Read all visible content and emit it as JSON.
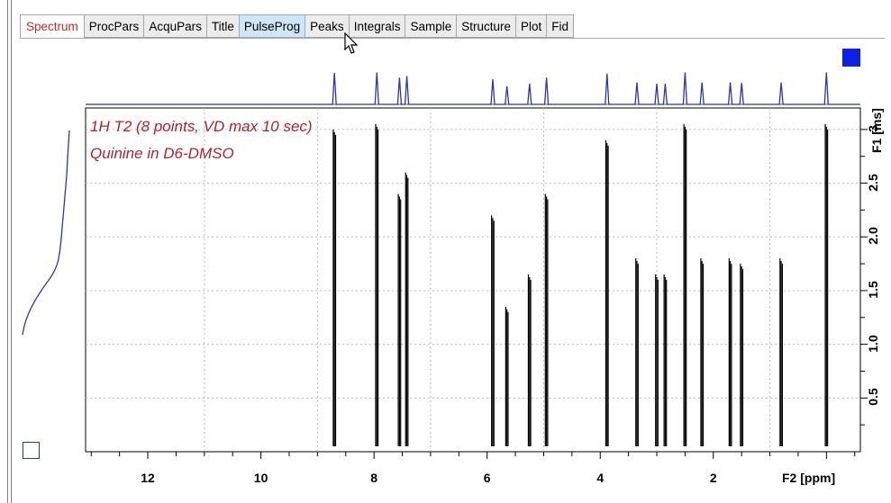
{
  "tabs": [
    {
      "label": "Spectrum",
      "state": "active"
    },
    {
      "label": "ProcPars",
      "state": "normal"
    },
    {
      "label": "AcquPars",
      "state": "normal"
    },
    {
      "label": "Title",
      "state": "normal"
    },
    {
      "label": "PulseProg",
      "state": "hover"
    },
    {
      "label": "Peaks",
      "state": "normal"
    },
    {
      "label": "Integrals",
      "state": "normal"
    },
    {
      "label": "Sample",
      "state": "normal"
    },
    {
      "label": "Structure",
      "state": "normal"
    },
    {
      "label": "Plot",
      "state": "normal"
    },
    {
      "label": "Fid",
      "state": "normal"
    }
  ],
  "spectrum_title": {
    "line1": "1H T2  (8 points, VD max 10 sec)",
    "line2": "Quinine in D6-DMSO"
  },
  "colors": {
    "title_red": "#b0232b",
    "active_tab_red": "#c22a2a",
    "projection_blue": "#2a35b5",
    "accent_blue": "#0b22e6",
    "grid": "#b8b8b8"
  },
  "icons": [
    "mouse-pointer-icon",
    "blue-square-icon",
    "hollow-square-icon"
  ],
  "chart_data": {
    "type": "line",
    "description_of_axes": "2D pseudo-spectrum",
    "x_axis": {
      "label": "F2 [ppm]",
      "ticks": [
        "12",
        "10",
        "8",
        "6",
        "4",
        "2"
      ],
      "range": [
        13.1,
        -0.6
      ],
      "reversed": true
    },
    "y_axis": {
      "label": "F1 [ms]",
      "ticks": [
        "0.5",
        "1.0",
        "1.5",
        "2.0",
        "2.5",
        "3"
      ],
      "range": [
        0,
        3.2
      ]
    },
    "peaks": [
      {
        "ppm": 8.7,
        "max_ms": 3.0
      },
      {
        "ppm": 7.95,
        "max_ms": 3.05
      },
      {
        "ppm": 7.55,
        "max_ms": 2.4
      },
      {
        "ppm": 7.42,
        "max_ms": 2.6
      },
      {
        "ppm": 5.9,
        "max_ms": 2.2
      },
      {
        "ppm": 5.65,
        "max_ms": 1.35
      },
      {
        "ppm": 5.25,
        "max_ms": 1.65
      },
      {
        "ppm": 4.95,
        "max_ms": 2.4
      },
      {
        "ppm": 3.88,
        "max_ms": 2.9
      },
      {
        "ppm": 3.35,
        "max_ms": 1.8
      },
      {
        "ppm": 3.0,
        "max_ms": 1.65
      },
      {
        "ppm": 2.85,
        "max_ms": 1.65
      },
      {
        "ppm": 2.5,
        "max_ms": 3.05
      },
      {
        "ppm": 2.2,
        "max_ms": 1.8
      },
      {
        "ppm": 1.7,
        "max_ms": 1.8
      },
      {
        "ppm": 1.5,
        "max_ms": 1.75
      },
      {
        "ppm": 0.8,
        "max_ms": 1.8
      },
      {
        "ppm": 0.0,
        "max_ms": 3.05
      }
    ]
  }
}
